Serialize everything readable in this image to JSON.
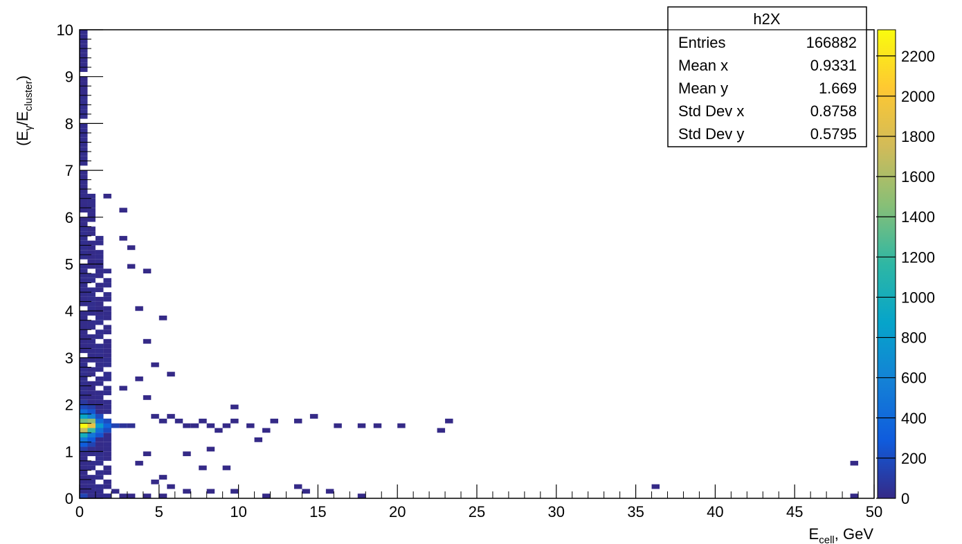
{
  "chart_data": {
    "type": "heatmap",
    "title": "",
    "xlabel": {
      "main": "E",
      "sub": "cell",
      "rest": ", GeV"
    },
    "ylabel": {
      "open": "(E",
      "sub1": "γ",
      "mid": "/E",
      "sub2": "cluster",
      "close": ")"
    },
    "xlim": [
      0,
      50
    ],
    "ylim": [
      0,
      10
    ],
    "x_ticks": [
      0,
      5,
      10,
      15,
      20,
      25,
      30,
      35,
      40,
      45,
      50
    ],
    "y_ticks": [
      0,
      1,
      2,
      3,
      4,
      5,
      6,
      7,
      8,
      9,
      10
    ],
    "z_range": [
      0,
      2330
    ],
    "z_ticks": [
      0,
      200,
      400,
      600,
      800,
      1000,
      1200,
      1400,
      1600,
      1800,
      2000,
      2200
    ],
    "colormap": [
      "#352a87",
      "#0f5cdd",
      "#1481d6",
      "#06a4ca",
      "#2eb7a4",
      "#87bf77",
      "#d1bb59",
      "#fec832",
      "#f9fb0e"
    ],
    "bin_size": [
      0.5,
      0.1
    ],
    "bins": [
      [
        0,
        1.5,
        2330
      ],
      [
        0.5,
        1.5,
        1900
      ],
      [
        0,
        1.4,
        1700
      ],
      [
        0.5,
        1.6,
        1500
      ],
      [
        0,
        1.6,
        1400
      ],
      [
        0,
        1.3,
        1000
      ],
      [
        0.5,
        1.4,
        1200
      ],
      [
        1,
        1.5,
        800
      ],
      [
        0.5,
        1.3,
        500
      ],
      [
        0,
        1.7,
        900
      ],
      [
        0.5,
        1.7,
        600
      ],
      [
        1,
        1.4,
        450
      ],
      [
        1,
        1.6,
        400
      ],
      [
        0,
        1.2,
        500
      ],
      [
        1.5,
        1.5,
        350
      ],
      [
        1.5,
        1.4,
        200
      ],
      [
        1.5,
        1.6,
        200
      ],
      [
        0,
        1.8,
        420
      ],
      [
        0.5,
        1.8,
        250
      ],
      [
        1,
        1.3,
        250
      ],
      [
        1,
        1.7,
        200
      ],
      [
        0,
        1.1,
        300
      ],
      [
        0.5,
        1.2,
        280
      ],
      [
        2,
        1.5,
        150
      ],
      [
        0,
        1.9,
        180
      ],
      [
        0.5,
        1.1,
        150
      ],
      [
        0.5,
        1.9,
        120
      ],
      [
        2.5,
        1.5,
        60
      ],
      [
        0,
        2.0,
        80
      ],
      [
        0,
        1.0,
        100
      ],
      [
        3,
        1.5,
        40
      ],
      [
        0,
        0.0,
        150
      ]
    ],
    "scatter_bins": [
      [
        2.5,
        2.3,
        3
      ],
      [
        3.5,
        2.5,
        2
      ],
      [
        4,
        2.1,
        2
      ],
      [
        4.5,
        1.7,
        4
      ],
      [
        5,
        1.6,
        5
      ],
      [
        5.5,
        1.7,
        3
      ],
      [
        6,
        1.6,
        4
      ],
      [
        6.5,
        1.5,
        4
      ],
      [
        7,
        1.5,
        3
      ],
      [
        7.5,
        1.6,
        3
      ],
      [
        8,
        1.5,
        3
      ],
      [
        8.5,
        1.4,
        2
      ],
      [
        9,
        1.5,
        2
      ],
      [
        9.5,
        1.6,
        1
      ],
      [
        10.5,
        1.5,
        1
      ],
      [
        11.5,
        1.4,
        1
      ],
      [
        12,
        1.6,
        1
      ],
      [
        13.5,
        1.6,
        1
      ],
      [
        14.5,
        1.7,
        1
      ],
      [
        17.5,
        1.5,
        1
      ],
      [
        18.5,
        1.5,
        1
      ],
      [
        22.5,
        1.4,
        1
      ],
      [
        23,
        1.6,
        1
      ],
      [
        11,
        1.2,
        1
      ],
      [
        8,
        1.0,
        1
      ],
      [
        7.5,
        0.6,
        1
      ],
      [
        9,
        0.6,
        1
      ],
      [
        9.5,
        1.9,
        1
      ],
      [
        5.5,
        2.6,
        1
      ],
      [
        4.5,
        2.8,
        1
      ],
      [
        4,
        3.3,
        1
      ],
      [
        5,
        3.8,
        1
      ],
      [
        3.5,
        4.0,
        1
      ],
      [
        3,
        4.9,
        1
      ],
      [
        4,
        4.8,
        1
      ],
      [
        2.5,
        5.5,
        1
      ],
      [
        2.5,
        6.1,
        1
      ],
      [
        3,
        5.3,
        1
      ],
      [
        1.5,
        6.4,
        1
      ],
      [
        48.5,
        0.7,
        1
      ],
      [
        36,
        0.2,
        1
      ],
      [
        13.5,
        0.2,
        1
      ],
      [
        14,
        0.1,
        1
      ],
      [
        17.5,
        0.0,
        1
      ],
      [
        48.5,
        0.0,
        1
      ],
      [
        6.5,
        0.1,
        1
      ],
      [
        8,
        0.1,
        1
      ],
      [
        5,
        0.4,
        1
      ],
      [
        6.5,
        0.9,
        1
      ],
      [
        4.5,
        0.3,
        1
      ],
      [
        3.5,
        0.7,
        1
      ],
      [
        4,
        0.9,
        1
      ],
      [
        5.5,
        0.2,
        1
      ],
      [
        3,
        0.0,
        2
      ],
      [
        4,
        0.0,
        2
      ],
      [
        5,
        0.0,
        1
      ],
      [
        2,
        0.1,
        3
      ],
      [
        2.5,
        0.0,
        3
      ],
      [
        1.5,
        0.0,
        4
      ],
      [
        1,
        0.0,
        10
      ],
      [
        0.5,
        0.0,
        30
      ],
      [
        9.5,
        0.1,
        1
      ],
      [
        11.5,
        0.0,
        1
      ],
      [
        15.5,
        0.1,
        1
      ],
      [
        20,
        1.5,
        1
      ],
      [
        16,
        1.5,
        1
      ]
    ],
    "legend": "top-right",
    "grid": false
  },
  "stats_box": {
    "title": "h2X",
    "rows": [
      {
        "label": "Entries",
        "value": "166882"
      },
      {
        "label": "Mean x",
        "value": "0.9331"
      },
      {
        "label": "Mean y",
        "value": "1.669"
      },
      {
        "label": "Std Dev x",
        "value": "0.8758"
      },
      {
        "label": "Std Dev y",
        "value": "0.5795"
      }
    ]
  }
}
